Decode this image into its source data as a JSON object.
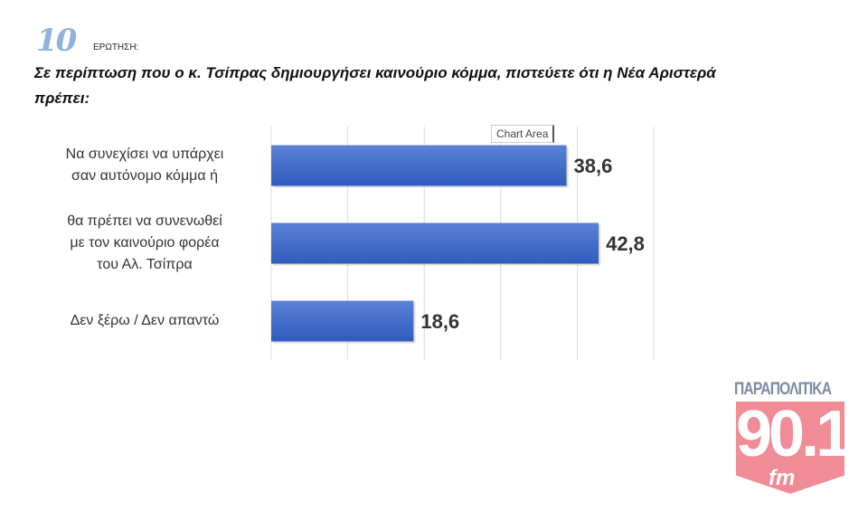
{
  "question": {
    "number": "10",
    "word": "ΕΡΩΤΗΣΗ:",
    "text": "Σε περίπτωση που ο κ. Τσίπρας δημιουργήσει καινούριο κόμμα, πιστεύετε ότι η Νέα Αριστερά πρέπει:"
  },
  "tooltip": "Chart Area",
  "chart_data": {
    "type": "bar",
    "orientation": "horizontal",
    "categories": [
      [
        "Να συνεχίσει να υπάρχει",
        "σαν αυτόνομο κόμμα ή"
      ],
      [
        "θα πρέπει να συνενωθεί",
        "με τον καινούριο φορέα",
        "του Αλ. Τσίπρα"
      ],
      [
        "Δεν ξέρω / Δεν απαντώ"
      ]
    ],
    "values": [
      38.6,
      42.8,
      18.6
    ],
    "data_labels": [
      "38,6",
      "42,8",
      "18,6"
    ],
    "xlim": [
      0,
      50
    ],
    "grid": true,
    "bar_color": "#3a66c4"
  },
  "logo": {
    "top": "ΠΑΡΑΠΟΛΙΤΙΚΑ",
    "number": "90.1",
    "suffix": "fm",
    "color": "#f08c95"
  }
}
